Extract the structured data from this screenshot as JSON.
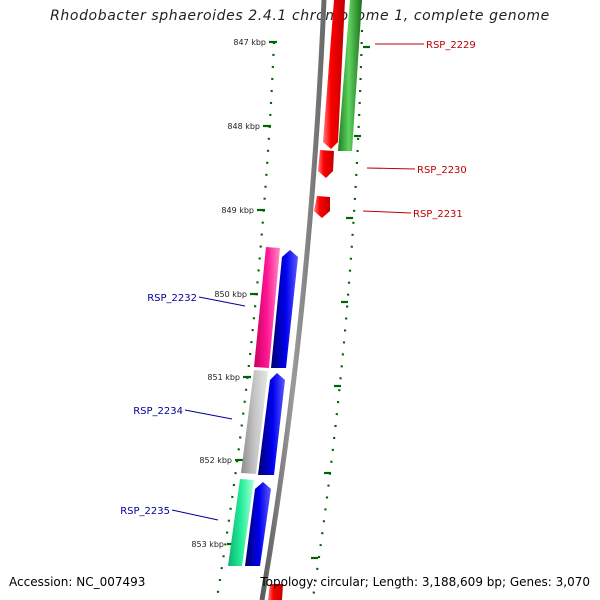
{
  "title": "Rhodobacter sphaeroides 2.4.1 chromosome 1, complete genome",
  "footer": {
    "accession_text": "Accession: NC_007493",
    "summary_text": "Topology: circular; Length: 3,188,609 bp; Genes: 3,070"
  },
  "colors": {
    "backbone": "#808080",
    "tick": "#006400",
    "label_forward": "#c00000",
    "label_reverse": "#000099"
  },
  "scale_ticks": [
    {
      "label": "847 kbp"
    },
    {
      "label": "848 kbp"
    },
    {
      "label": "849 kbp"
    },
    {
      "label": "850 kbp"
    },
    {
      "label": "851 kbp"
    },
    {
      "label": "852 kbp"
    },
    {
      "label": "853 kbp"
    }
  ],
  "gene_labels": [
    {
      "label": "RSP_2229",
      "strand": "forward"
    },
    {
      "label": "RSP_2230",
      "strand": "forward"
    },
    {
      "label": "RSP_2231",
      "strand": "forward"
    },
    {
      "label": "RSP_2232",
      "strand": "reverse"
    },
    {
      "label": "RSP_2234",
      "strand": "reverse"
    },
    {
      "label": "RSP_2235",
      "strand": "reverse"
    }
  ],
  "features": [
    {
      "name": "forward-gene-red",
      "color": "#ff0000"
    },
    {
      "name": "forward-cds-green",
      "color": "#22aa22"
    },
    {
      "name": "reverse-gene-magenta",
      "color": "#ff1493"
    },
    {
      "name": "reverse-gene-gray",
      "color": "#b0b0b0"
    },
    {
      "name": "reverse-gene-mint",
      "color": "#22ee99"
    },
    {
      "name": "reverse-cds-blue",
      "color": "#0000ee"
    }
  ]
}
